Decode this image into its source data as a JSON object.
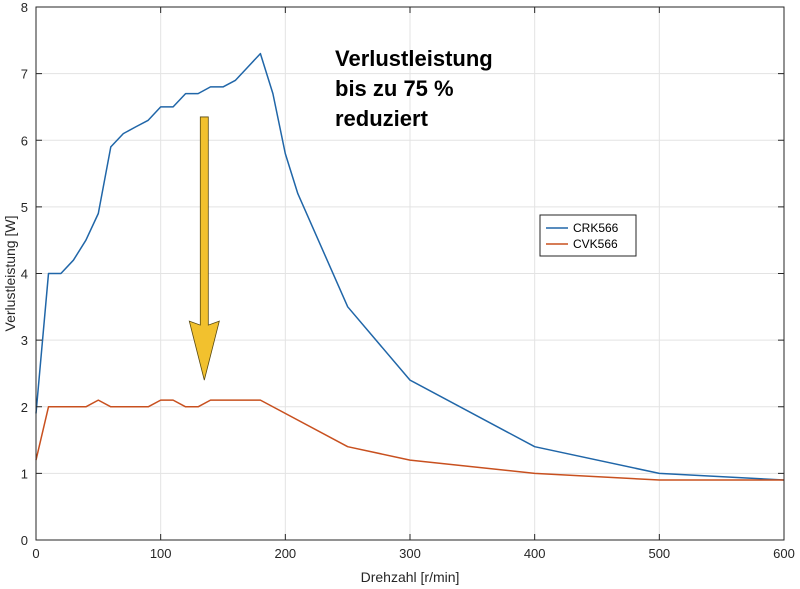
{
  "chart_data": {
    "type": "line",
    "xlabel": "Drehzahl [r/min]",
    "ylabel": "Verlustleistung [W]",
    "xlim": [
      0,
      600
    ],
    "ylim": [
      0,
      8
    ],
    "xticks": [
      0,
      100,
      200,
      300,
      400,
      500,
      600
    ],
    "yticks": [
      0,
      1,
      2,
      3,
      4,
      5,
      6,
      7,
      8
    ],
    "grid": true,
    "legend_position": "right-middle",
    "series": [
      {
        "name": "CRK566",
        "color": "#2066a8",
        "x": [
          0,
          10,
          20,
          30,
          40,
          50,
          60,
          70,
          80,
          90,
          100,
          110,
          120,
          130,
          140,
          150,
          160,
          170,
          180,
          190,
          200,
          210,
          250,
          300,
          400,
          500,
          600
        ],
        "y": [
          1.9,
          4.0,
          4.0,
          4.2,
          4.5,
          4.9,
          5.9,
          6.1,
          6.2,
          6.3,
          6.5,
          6.5,
          6.7,
          6.7,
          6.8,
          6.8,
          6.9,
          7.1,
          7.3,
          6.7,
          5.8,
          5.2,
          3.5,
          2.4,
          1.4,
          1.0,
          0.9
        ]
      },
      {
        "name": "CVK566",
        "color": "#c8501f",
        "x": [
          0,
          10,
          20,
          40,
          50,
          60,
          80,
          90,
          100,
          110,
          120,
          130,
          140,
          150,
          180,
          250,
          300,
          400,
          500,
          600
        ],
        "y": [
          1.2,
          2.0,
          2.0,
          2.0,
          2.1,
          2.0,
          2.0,
          2.0,
          2.1,
          2.1,
          2.0,
          2.0,
          2.1,
          2.1,
          2.1,
          1.4,
          1.2,
          1.0,
          0.9,
          0.9
        ]
      }
    ],
    "annotation": {
      "lines": [
        "Verlustleistung",
        "bis zu 75 %",
        "reduziert"
      ],
      "arrow": {
        "x": 135,
        "y_from": 6.35,
        "y_to": 2.4,
        "color": "#f2c12e"
      }
    }
  }
}
